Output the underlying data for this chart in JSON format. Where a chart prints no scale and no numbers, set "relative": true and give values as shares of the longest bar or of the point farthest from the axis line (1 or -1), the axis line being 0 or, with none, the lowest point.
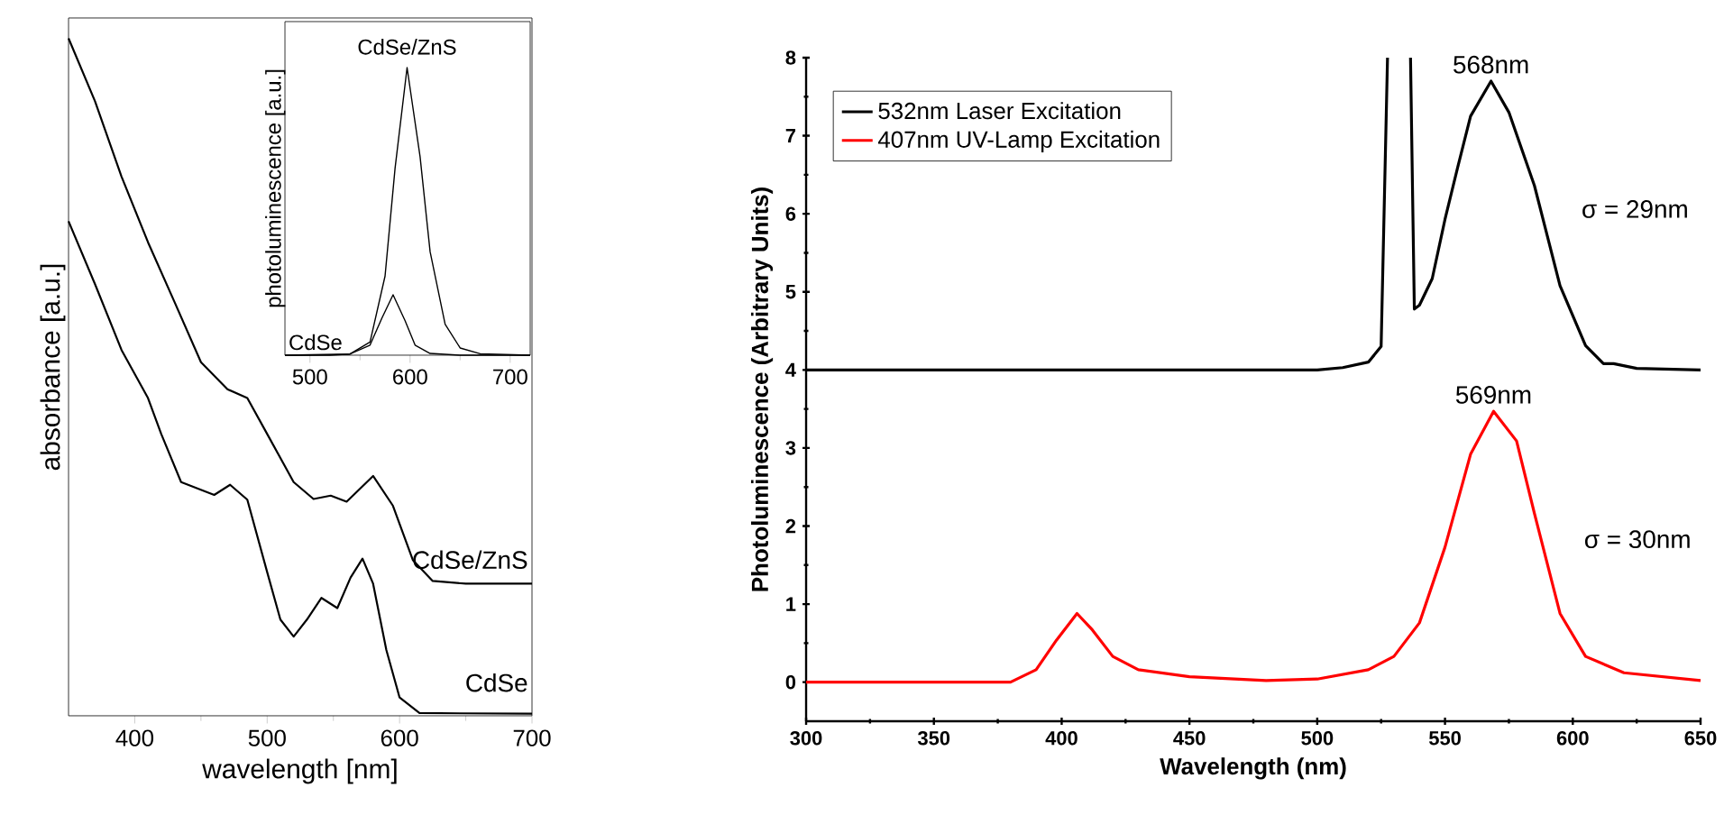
{
  "chart_data": [
    {
      "type": "line",
      "relative": true,
      "xlabel": "wavelength [nm]",
      "ylabel": "absorbance [a.u.]",
      "xlim": [
        350,
        700
      ],
      "xticks": [
        400,
        500,
        600,
        700
      ],
      "legend": false,
      "series": [
        {
          "name": "CdSe/ZnS",
          "color": "#000000",
          "x": [
            350,
            370,
            390,
            410,
            430,
            450,
            470,
            485,
            500,
            520,
            535,
            548,
            560,
            580,
            595,
            610,
            625,
            650,
            700
          ],
          "values": [
            1.0,
            0.907,
            0.796,
            0.699,
            0.611,
            0.522,
            0.482,
            0.469,
            0.416,
            0.345,
            0.32,
            0.325,
            0.316,
            0.354,
            0.31,
            0.23,
            0.199,
            0.195,
            0.195
          ]
        },
        {
          "name": "CdSe",
          "color": "#000000",
          "x": [
            350,
            370,
            390,
            410,
            420,
            435,
            460,
            472,
            485,
            500,
            510,
            520,
            530,
            541,
            553,
            563,
            572,
            580,
            590,
            600,
            615,
            700
          ],
          "values": [
            0.73,
            0.637,
            0.54,
            0.469,
            0.416,
            0.345,
            0.326,
            0.341,
            0.319,
            0.212,
            0.142,
            0.117,
            0.142,
            0.174,
            0.159,
            0.204,
            0.232,
            0.195,
            0.097,
            0.027,
            0.004,
            0.003
          ]
        }
      ]
    },
    {
      "type": "line",
      "relative": true,
      "ylabel": "photoluminescence [a.u.]",
      "xlim": [
        475,
        720
      ],
      "xticks": [
        500,
        600,
        700
      ],
      "legend": false,
      "series": [
        {
          "name": "CdSe/ZnS",
          "color": "#000000",
          "x": [
            475,
            520,
            540,
            560,
            575,
            585,
            597,
            610,
            620,
            635,
            650,
            670,
            720
          ],
          "values": [
            0,
            0,
            0.004,
            0.046,
            0.275,
            0.65,
            1.0,
            0.69,
            0.36,
            0.108,
            0.025,
            0.005,
            0
          ]
        },
        {
          "name": "CdSe",
          "color": "#000000",
          "x": [
            475,
            540,
            560,
            572,
            583,
            595,
            605,
            620,
            650,
            720
          ],
          "values": [
            0,
            0.004,
            0.035,
            0.13,
            0.21,
            0.12,
            0.035,
            0.006,
            0,
            0
          ]
        }
      ]
    },
    {
      "type": "line",
      "xlabel": "Wavelength (nm)",
      "ylabel": "Photoluminescence (Arbitrary Units)",
      "xlim": [
        300,
        650
      ],
      "xticks": [
        300,
        350,
        400,
        450,
        500,
        550,
        600,
        650
      ],
      "ylim": [
        -0.5,
        8
      ],
      "yticks": [
        0,
        1,
        2,
        3,
        4,
        5,
        6,
        7,
        8
      ],
      "legend": "top left",
      "series": [
        {
          "name": "532nm Laser Excitation",
          "color": "#000000",
          "x": [
            300,
            400,
            500,
            510,
            520,
            525,
            527.5,
            531,
            536.5,
            538,
            540,
            545,
            550,
            555,
            560,
            568,
            575,
            585,
            595,
            605,
            612,
            616,
            625,
            650
          ],
          "values": [
            4.0,
            4.0,
            4.0,
            4.03,
            4.1,
            4.3,
            8,
            null,
            8,
            4.78,
            4.83,
            5.17,
            5.93,
            6.6,
            7.25,
            7.7,
            7.3,
            6.36,
            5.08,
            4.31,
            4.08,
            4.08,
            4.02,
            4.0
          ]
        },
        {
          "name": "407nm UV-Lamp Excitation",
          "color": "#ff0000",
          "x": [
            300,
            380,
            390,
            398,
            406,
            412,
            420,
            430,
            450,
            480,
            500,
            520,
            530,
            540,
            550,
            560,
            569,
            578,
            585,
            595,
            605,
            620,
            650
          ],
          "values": [
            0,
            0,
            0.16,
            0.54,
            0.88,
            0.67,
            0.33,
            0.16,
            0.07,
            0.02,
            0.04,
            0.16,
            0.33,
            0.76,
            1.73,
            2.92,
            3.47,
            3.09,
            2.16,
            0.88,
            0.33,
            0.12,
            0.02
          ]
        }
      ],
      "annotations": [
        {
          "text": "568nm",
          "x": 568,
          "y": 7.7
        },
        "σ = 29nm",
        {
          "text": "569nm",
          "x": 569,
          "y": 3.47
        },
        "σ = 30nm"
      ]
    }
  ]
}
